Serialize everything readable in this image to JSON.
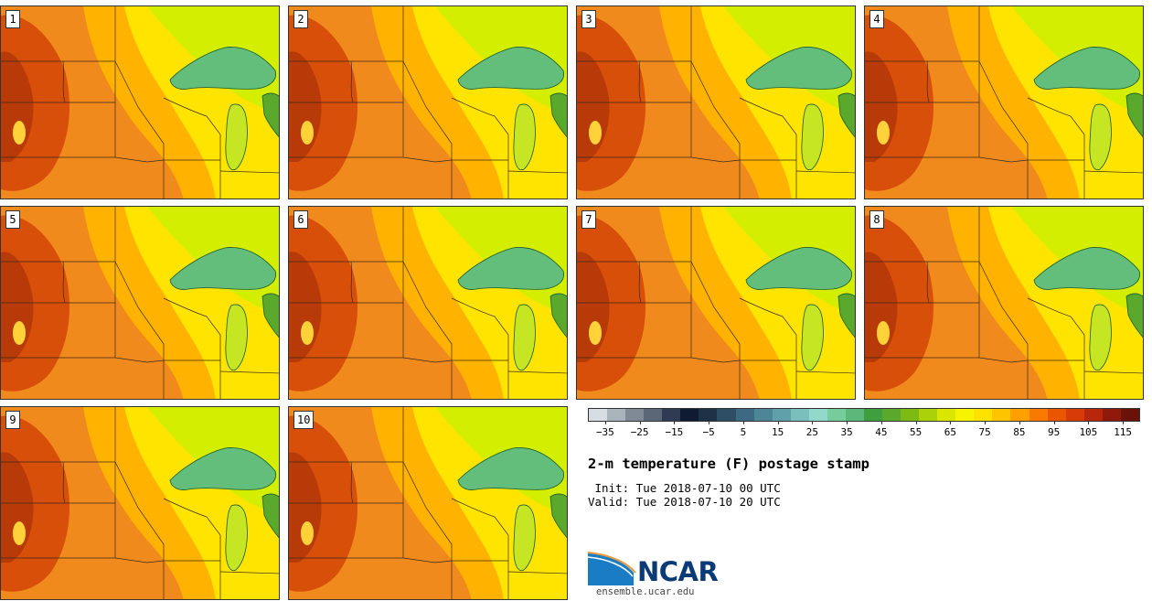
{
  "panels": [
    {
      "label": "1"
    },
    {
      "label": "2"
    },
    {
      "label": "3"
    },
    {
      "label": "4"
    },
    {
      "label": "5"
    },
    {
      "label": "6"
    },
    {
      "label": "7"
    },
    {
      "label": "8"
    },
    {
      "label": "9"
    },
    {
      "label": "10"
    }
  ],
  "colorbar": {
    "colors": [
      "#d6dde3",
      "#a9b3bc",
      "#7f8a96",
      "#5b6676",
      "#2f3b52",
      "#0e1b33",
      "#1e3147",
      "#2e4e66",
      "#3d6a82",
      "#4d8797",
      "#5fa0aa",
      "#7abfbb",
      "#92d9cc",
      "#76cc9a",
      "#5bb87a",
      "#3f9e3e",
      "#5aa82c",
      "#7dbb14",
      "#aad10a",
      "#d8e600",
      "#f6f400",
      "#ffe200",
      "#ffc400",
      "#ffa000",
      "#f87a00",
      "#ea5600",
      "#d83a08",
      "#b8260c",
      "#8f1a0c",
      "#6b1208"
    ],
    "ticks": [
      "-35",
      "-25",
      "-15",
      "-5",
      "5",
      "15",
      "25",
      "35",
      "45",
      "55",
      "65",
      "75",
      "85",
      "95",
      "105",
      "115"
    ],
    "range": [
      -40,
      120
    ]
  },
  "title": "2-m temperature (F) postage stamp",
  "init": " Init: Tue 2018-07-10 00 UTC",
  "valid": "Valid: Tue 2018-07-10 20 UTC",
  "logo": {
    "text": "NCAR",
    "url": "ensemble.ucar.edu"
  }
}
